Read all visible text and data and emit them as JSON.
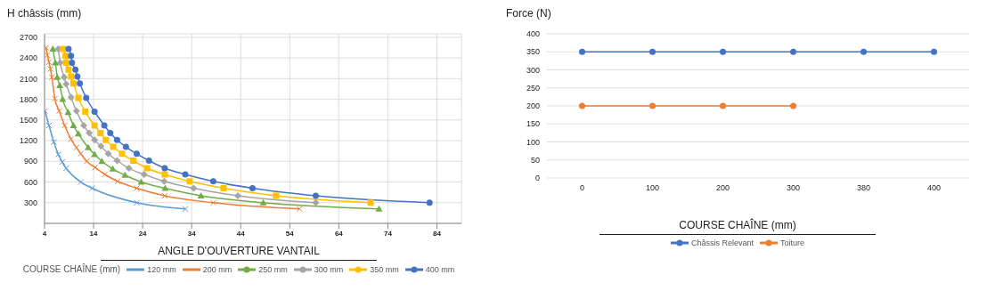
{
  "chart_data": [
    {
      "type": "line",
      "ylabel": "H châssis (mm)",
      "xlabel": "ANGLE D'OUVERTURE VANTAIL",
      "legend_title": "COURSE CHAÎNE (mm)",
      "xlim": [
        4,
        89
      ],
      "xticks": [
        4,
        14,
        24,
        34,
        44,
        54,
        64,
        74,
        84
      ],
      "ylim": [
        0,
        2750
      ],
      "yticks": [
        300,
        600,
        900,
        1200,
        1500,
        1800,
        2100,
        2400,
        2700
      ],
      "grid": true,
      "legend": "bottom",
      "series": [
        {
          "name": "120 mm",
          "color": "#5b9bd5",
          "marker": "cross",
          "x": [
            4.1,
            4.9,
            5.9,
            6.8,
            7.6,
            8.4,
            11.4,
            13.7,
            22.8,
            32.7
          ],
          "values": [
            1630,
            1420,
            1180,
            1000,
            890,
            800,
            600,
            510,
            300,
            210
          ]
        },
        {
          "name": "200 mm",
          "color": "#ed7d31",
          "marker": "cross",
          "x": [
            4.3,
            4.6,
            4.9,
            5.2,
            5.5,
            6.1,
            7.0,
            8.1,
            9.4,
            10.5,
            11.4,
            12.6,
            14.3,
            16.3,
            18.9,
            22.8,
            28.5,
            38.4,
            56
          ],
          "values": [
            2550,
            2440,
            2340,
            2240,
            2120,
            1810,
            1630,
            1420,
            1220,
            1100,
            1010,
            900,
            810,
            710,
            610,
            510,
            400,
            300,
            210
          ]
        },
        {
          "name": "250 mm",
          "color": "#70ad47",
          "marker": "triangle",
          "x": [
            5.7,
            6.2,
            6.6,
            7.1,
            7.7,
            8.8,
            9.9,
            10.9,
            12.9,
            14.2,
            15.7,
            17.9,
            20.4,
            23.7,
            28.6,
            35.9,
            48.6,
            72.2
          ],
          "values": [
            2530,
            2330,
            2120,
            2000,
            1800,
            1610,
            1420,
            1300,
            1100,
            1000,
            900,
            790,
            700,
            600,
            510,
            400,
            300,
            210
          ]
        },
        {
          "name": "300 mm",
          "color": "#a5a5a5",
          "marker": "diamond",
          "x": [
            6.8,
            7.2,
            8.0,
            8.4,
            9.4,
            10.5,
            12.0,
            13.1,
            14.2,
            15.5,
            17.0,
            18.8,
            21.2,
            24.3,
            28.4,
            34.4,
            43.4,
            59.3
          ],
          "values": [
            2530,
            2330,
            2120,
            2020,
            1830,
            1630,
            1420,
            1310,
            1210,
            1120,
            1010,
            910,
            800,
            710,
            610,
            510,
            400,
            300
          ]
        },
        {
          "name": "350 mm",
          "color": "#ffc000",
          "marker": "square",
          "x": [
            7.8,
            8.3,
            8.4,
            8.9,
            9.4,
            9.9,
            10.9,
            12.3,
            14.2,
            15.4,
            16.5,
            18.0,
            19.8,
            22.1,
            24.9,
            28.5,
            33.6,
            40.5,
            51.2,
            70.5
          ],
          "values": [
            2530,
            2430,
            2330,
            2230,
            2130,
            2030,
            1820,
            1620,
            1420,
            1310,
            1210,
            1110,
            1010,
            910,
            800,
            710,
            610,
            510,
            400,
            300
          ]
        },
        {
          "name": "400 mm",
          "color": "#4472c4",
          "marker": "circle",
          "x": [
            8.9,
            9.4,
            9.6,
            10.3,
            10.7,
            11.2,
            12.5,
            14.2,
            16.2,
            17.4,
            18.8,
            20.6,
            22.8,
            25.3,
            28.5,
            32.7,
            38.4,
            46.4,
            59.3,
            82.5
          ],
          "values": [
            2530,
            2430,
            2330,
            2230,
            2130,
            2030,
            1820,
            1620,
            1420,
            1310,
            1210,
            1110,
            1010,
            910,
            800,
            710,
            610,
            510,
            400,
            300
          ]
        }
      ]
    },
    {
      "type": "line",
      "ylabel": "Force (N)",
      "xlabel": "COURSE CHAÎNE (mm)",
      "categories": [
        "0",
        "100",
        "200",
        "300",
        "380",
        "400"
      ],
      "ylim": [
        0,
        400
      ],
      "yticks": [
        0,
        50,
        100,
        150,
        200,
        250,
        300,
        350,
        400
      ],
      "grid": "y",
      "legend": "bottom",
      "marker": "circle",
      "series": [
        {
          "name": "Châssis Relevant",
          "color": "#4472c4",
          "values": [
            350,
            350,
            350,
            350,
            350,
            350
          ]
        },
        {
          "name": "Toiture",
          "color": "#ed7d31",
          "values": [
            200,
            200,
            200,
            200,
            null,
            null
          ]
        }
      ]
    }
  ]
}
